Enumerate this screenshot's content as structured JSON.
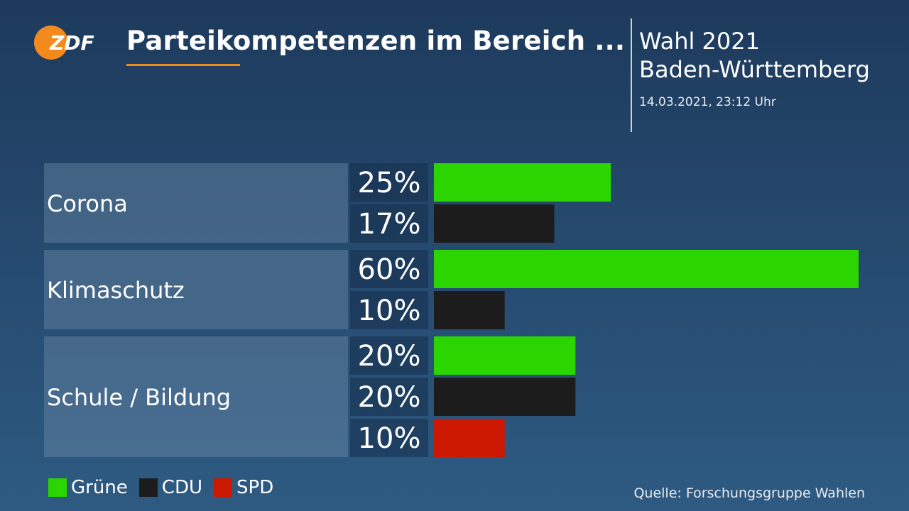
{
  "brand": {
    "logo_text": "ZDF",
    "logo_color": "#f28a1e"
  },
  "header": {
    "title": "Parteikompetenzen im Bereich ...",
    "accent_color": "#f28a1e",
    "election_line1": "Wahl 2021",
    "election_line2": "Baden-Württemberg",
    "timestamp": "14.03.2021, 23:12 Uhr"
  },
  "chart_data": {
    "type": "bar",
    "orientation": "horizontal",
    "unit": "%",
    "xlim": [
      0,
      60
    ],
    "groups": [
      {
        "category": "Corona",
        "bars": [
          {
            "party": "Grüne",
            "value": 25
          },
          {
            "party": "CDU",
            "value": 17
          }
        ]
      },
      {
        "category": "Klimaschutz",
        "bars": [
          {
            "party": "Grüne",
            "value": 60
          },
          {
            "party": "CDU",
            "value": 10
          }
        ]
      },
      {
        "category": "Schule / Bildung",
        "bars": [
          {
            "party": "Grüne",
            "value": 20
          },
          {
            "party": "CDU",
            "value": 20
          },
          {
            "party": "SPD",
            "value": 10
          }
        ]
      }
    ],
    "legend": [
      {
        "name": "Grüne",
        "color": "#2bd600"
      },
      {
        "name": "CDU",
        "color": "#1c1c1c"
      },
      {
        "name": "SPD",
        "color": "#cc1800"
      }
    ],
    "legend_position": "bottom-left"
  },
  "footer": {
    "source": "Quelle: Forschungsgruppe Wahlen"
  }
}
